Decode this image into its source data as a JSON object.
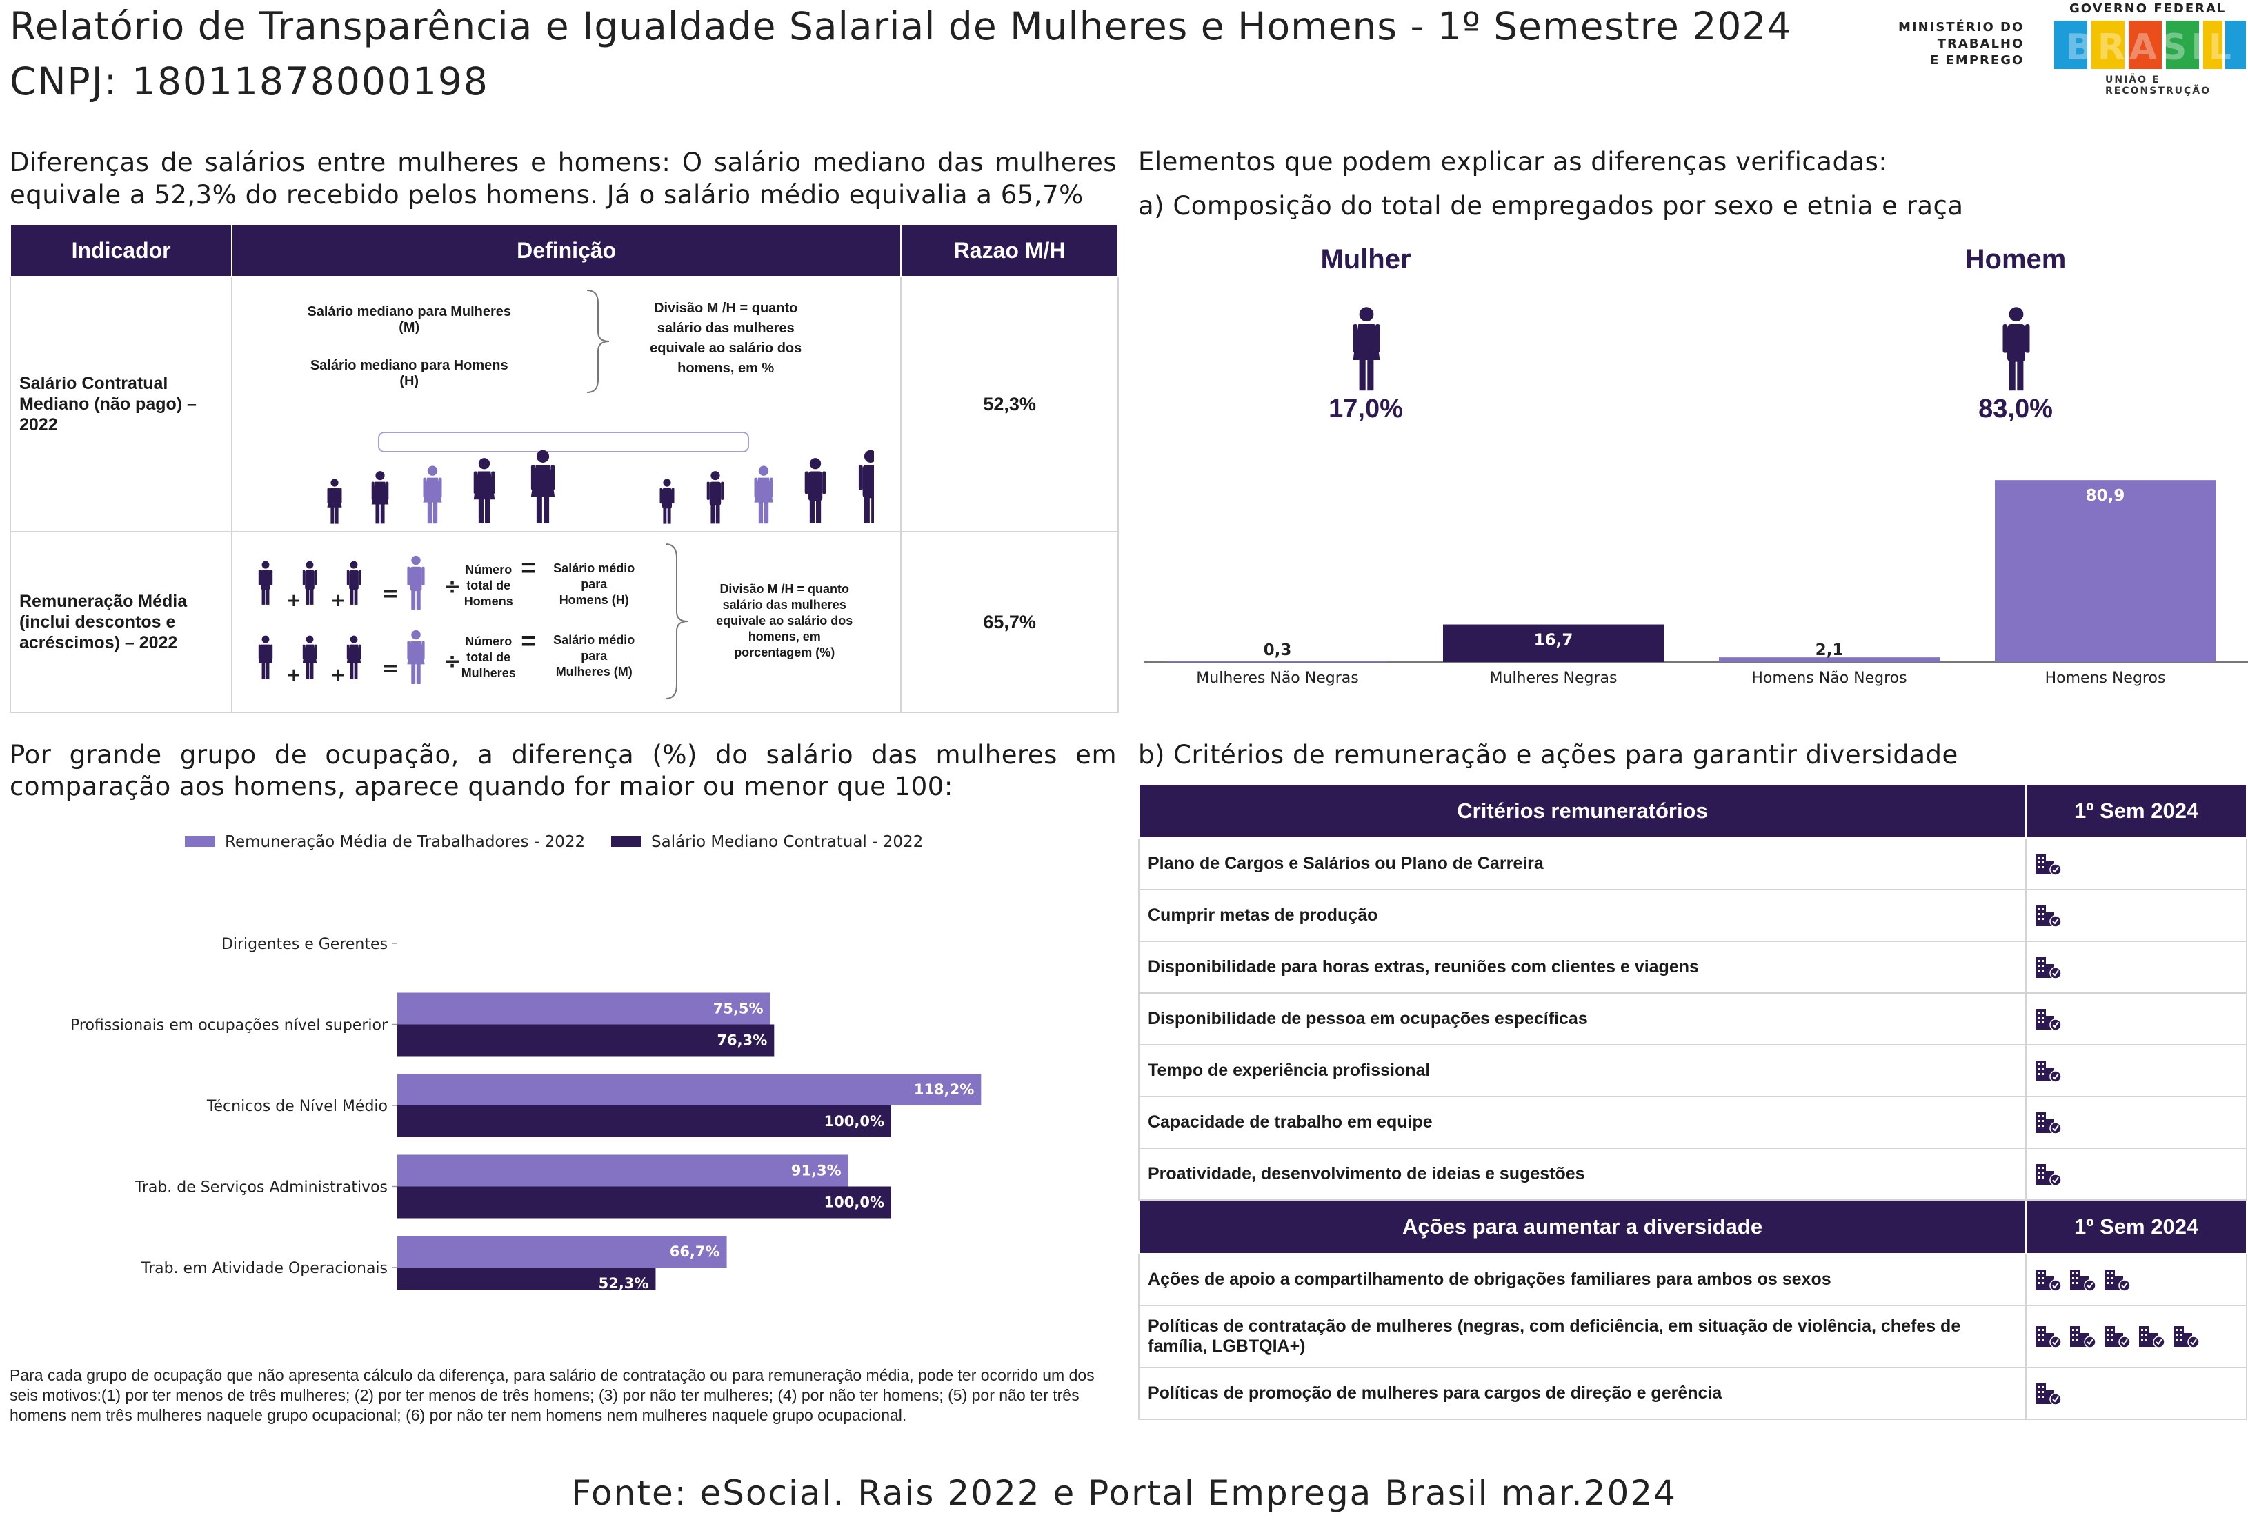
{
  "header": {
    "title": "Relatório de Transparência e Igualdade Salarial de Mulheres e Homens - 1º Semestre 2024",
    "cnpj": "CNPJ: 18011878000198",
    "ministry_logo": [
      "MINISTÉRIO DO",
      "TRABALHO",
      "E EMPREGO"
    ],
    "gov_logo": {
      "top": "GOVERNO FEDERAL",
      "word": "BRASIL",
      "sub": "UNIÃO E RECONSTRUÇÃO"
    }
  },
  "intro": {
    "text": "Diferenças de salários entre mulheres e homens: O salário mediano das mulheres equivale a 52,3% do recebido pelos homens. Já o salário médio equivalia a 65,7%"
  },
  "indicator_table": {
    "headers": [
      "Indicador",
      "Definição",
      "Razao M/H"
    ],
    "rows": [
      {
        "label": "Salário Contratual Mediano (não pago) – 2022",
        "value": "52,3%",
        "def_left": [
          "Salário mediano para Mulheres (M)",
          "Salário mediano para Homens (H)"
        ],
        "def_right": [
          "Divisão M /H = quanto",
          "salário das mulheres",
          "equivale ao salário dos",
          "homens, em %"
        ]
      },
      {
        "label": "Remuneração Média (inclui descontos e acréscimos) – 2022",
        "value": "65,7%",
        "num_label": [
          "Número",
          "total de",
          "Homens"
        ],
        "num_label2": [
          "Número",
          "total de",
          "Mulheres"
        ],
        "sal_label": [
          "Salário médio",
          "para",
          "Homens (H)"
        ],
        "sal_label2": [
          "Salário médio",
          "para",
          "Mulheres (M)"
        ],
        "def_right": [
          "Divisão M /H = quanto",
          "salário das mulheres",
          "equivale ao salário dos",
          "homens, em",
          "porcentagem (%)"
        ]
      }
    ]
  },
  "composition": {
    "heading": "Elementos que podem explicar as diferenças verificadas:",
    "subheading": "a) Composição do total de empregados por sexo e etnia e raça",
    "female": {
      "label": "Mulher",
      "value": "17,0%"
    },
    "male": {
      "label": "Homem",
      "value": "83,0%"
    }
  },
  "occupation": {
    "heading": "Por grande grupo de ocupação, a diferença (%) do salário das mulheres em comparação aos homens, aparece quando for maior ou menor que 100:",
    "footnote": "Para cada grupo de ocupação que não apresenta cálculo da diferença, para salário de contratação ou para remuneração média, pode ter ocorrido um dos seis motivos:(1) por ter menos de três mulheres; (2) por ter menos de três homens; (3) por não ter mulheres; (4) por não ter homens; (5) por não ter três homens nem três mulheres naquele grupo ocupacional; (6) por não ter nem homens nem mulheres naquele grupo ocupacional."
  },
  "criteria": {
    "heading": "b) Critérios de remuneração e ações para garantir diversidade",
    "header": [
      "Critérios remuneratórios",
      "1º Sem 2024"
    ],
    "rows": [
      {
        "label": "Plano de Cargos e Salários ou Plano de Carreira",
        "icons": 1
      },
      {
        "label": "Cumprir metas de produção",
        "icons": 1
      },
      {
        "label": "Disponibilidade para horas extras, reuniões com clientes e viagens",
        "icons": 1
      },
      {
        "label": "Disponibilidade de pessoa em ocupações específicas",
        "icons": 1
      },
      {
        "label": "Tempo de experiência profissional",
        "icons": 1
      },
      {
        "label": "Capacidade de trabalho em equipe",
        "icons": 1
      },
      {
        "label": "Proatividade, desenvolvimento de ideias e sugestões",
        "icons": 1
      }
    ],
    "actions_header": [
      "Ações para aumentar a diversidade",
      "1º Sem 2024"
    ],
    "actions": [
      {
        "label": "Ações de apoio a compartilhamento de obrigações familiares para ambos os sexos",
        "icons": 3
      },
      {
        "label": "Políticas de contratação de mulheres (negras, com deficiência, em situação de violência, chefes de família, LGBTQIA+)",
        "icons": 5
      },
      {
        "label": "Políticas de promoção de mulheres para cargos de direção e gerência",
        "icons": 1
      }
    ]
  },
  "source": "Fonte: eSocial. Rais 2022 e Portal Emprega Brasil mar.2024",
  "colors": {
    "dark": "#2d1a52",
    "light": "#8473c2"
  },
  "chart_data": [
    {
      "type": "bar",
      "categories": [
        "Mulheres Não Negras",
        "Mulheres Negras",
        "Homens Não Negros",
        "Homens Negros"
      ],
      "values": [
        0.3,
        16.7,
        2.1,
        80.9
      ],
      "labels": [
        "0,3",
        "16,7",
        "2,1",
        "80,9"
      ],
      "colors": [
        "#8473c2",
        "#2d1a52",
        "#8473c2",
        "#8473c2"
      ],
      "ylim": [
        0,
        85
      ]
    },
    {
      "type": "bar",
      "orientation": "horizontal",
      "categories": [
        "Dirigentes e Gerentes",
        "Profissionais em ocupações nível superior",
        "Técnicos de Nível Médio",
        "Trab. de Serviços Administrativos",
        "Trab. em Atividade Operacionais"
      ],
      "series": [
        {
          "name": "Remuneração Média de Trabalhadores - 2022",
          "values": [
            null,
            75.5,
            118.2,
            91.3,
            66.7
          ],
          "labels": [
            "",
            "75,5%",
            "118,2%",
            "91,3%",
            "66,7%"
          ],
          "color": "#8473c2"
        },
        {
          "name": "Salário Mediano Contratual - 2022",
          "values": [
            null,
            76.3,
            100.0,
            100.0,
            52.3
          ],
          "labels": [
            "",
            "76,3%",
            "100,0%",
            "100,0%",
            "52,3%"
          ],
          "color": "#2d1a52"
        }
      ],
      "legend": "top",
      "xlim": [
        0,
        120
      ]
    }
  ]
}
